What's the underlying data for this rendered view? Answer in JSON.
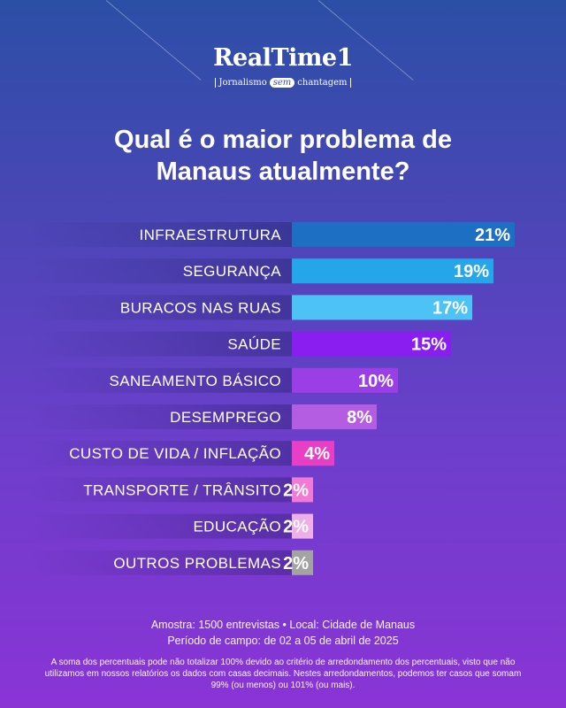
{
  "logo": {
    "name": "RealTime1",
    "tag_left": "Jornalismo",
    "tag_pill": "sem",
    "tag_right": "chantagem"
  },
  "title_line1": "Qual é o maior problema de",
  "title_line2": "Manaus atualmente?",
  "chart_data": {
    "type": "bar",
    "orientation": "horizontal",
    "categories": [
      "INFRAESTRUTURA",
      "SEGURANÇA",
      "BURACOS NAS RUAS",
      "SAÚDE",
      "SANEAMENTO BÁSICO",
      "DESEMPREGO",
      "CUSTO DE VIDA / INFLAÇÃO",
      "TRANSPORTE / TRÂNSITO",
      "EDUCAÇÃO",
      "OUTROS PROBLEMAS"
    ],
    "values": [
      21,
      19,
      17,
      15,
      10,
      8,
      4,
      2,
      2,
      2
    ],
    "labels": [
      "21%",
      "19%",
      "17%",
      "15%",
      "10%",
      "8%",
      "4%",
      "2%",
      "2%",
      "2%"
    ],
    "colors": [
      "#1d6fc4",
      "#26a6ea",
      "#4dc3f5",
      "#8a1ef0",
      "#9a3ee6",
      "#b45ce2",
      "#e83fc6",
      "#f07ad6",
      "#eeaee8",
      "#a3a3a3"
    ],
    "title": "Qual é o maior problema de Manaus atualmente?",
    "xlabel": "",
    "ylabel": ""
  },
  "footer": {
    "line1": "Amostra: 1500 entrevistas • Local: Cidade de Manaus",
    "line2": "Período de campo: de 02 a 05 de abril de 2025",
    "note": "A soma dos percentuais pode não totalizar 100% devido ao critério de arredondamento dos percentuais, visto que não utilizamos em nossos relatórios os dados com casas decimais. Nestes arredondamentos, podemos ter casos que somam 99% (ou menos) ou 101% (ou mais)."
  }
}
